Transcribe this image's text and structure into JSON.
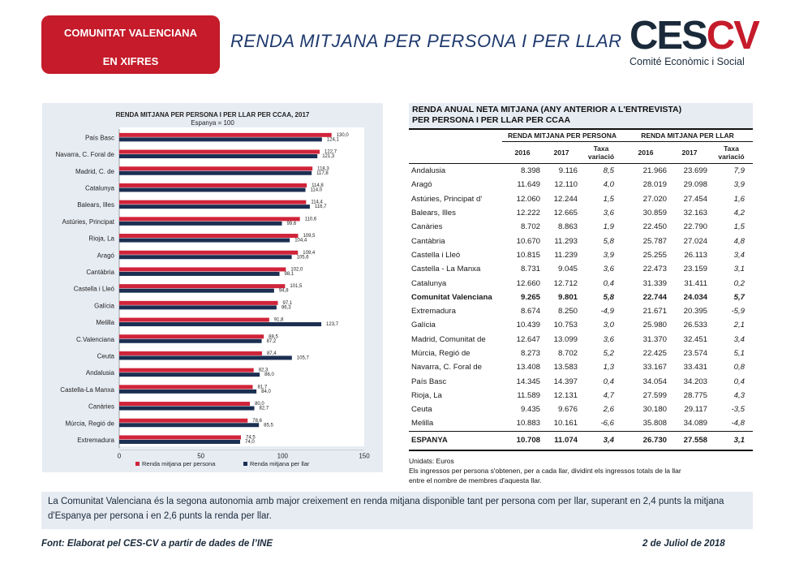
{
  "header": {
    "badge_line1": "COMUNITAT VALENCIANA",
    "badge_line2": "EN XIFRES",
    "title": "RENDA MITJANA PER PERSONA I PER LLAR",
    "logo_ces": "CES",
    "logo_cv": "CV",
    "logo_sub": "Comité Econòmic i Social"
  },
  "chart_data": {
    "type": "bar",
    "orientation": "horizontal",
    "title": "RENDA MITJANA PER PERSONA I PER LLAR PER CCAA, 2017",
    "subtitle": "Espanya = 100",
    "categories": [
      "País Basc",
      "Navarra, C. Foral de",
      "Madrid, C. de",
      "Catalunya",
      "Balears, Illes",
      "Astúries, Principat",
      "Rioja, La",
      "Aragó",
      "Cantàbria",
      "Castella i Lleó",
      "Galícia",
      "Melilla",
      "C.Valenciana",
      "Ceuta",
      "Andalusia",
      "Castella-La Manxa",
      "Canàries",
      "Múrcia, Regió de",
      "Extremadura"
    ],
    "series": [
      {
        "name": "Renda mitjana per persona",
        "color": "#d0243a",
        "values": [
          130.0,
          122.7,
          118.3,
          114.8,
          114.4,
          110.6,
          109.5,
          109.4,
          102.0,
          101.5,
          97.1,
          91.8,
          88.5,
          87.4,
          82.3,
          81.7,
          80.0,
          78.6,
          74.5
        ]
      },
      {
        "name": "Renda mitjana per llar",
        "color": "#1b2f52",
        "values": [
          124.1,
          121.3,
          117.8,
          114.0,
          116.7,
          99.6,
          104.4,
          105.6,
          98.1,
          94.8,
          96.3,
          123.7,
          87.2,
          105.7,
          86.0,
          84.0,
          82.7,
          85.5,
          74.0
        ]
      }
    ],
    "value_labels": [
      [
        "130,0",
        "124,1"
      ],
      [
        "122,7",
        "121,3"
      ],
      [
        "118,3",
        "117,8"
      ],
      [
        "114,8",
        "114,0"
      ],
      [
        "114,4",
        "116,7"
      ],
      [
        "110,6",
        "99,6"
      ],
      [
        "109,5",
        "104,4"
      ],
      [
        "109,4",
        "105,6"
      ],
      [
        "102,0",
        "98,1"
      ],
      [
        "101,5",
        "94,8"
      ],
      [
        "97,1",
        "96,3"
      ],
      [
        "91,8",
        "123,7"
      ],
      [
        "88,5",
        "87,2"
      ],
      [
        "87,4",
        "105,7"
      ],
      [
        "82,3",
        "86,0"
      ],
      [
        "81,7",
        "84,0"
      ],
      [
        "80,0",
        "82,7"
      ],
      [
        "78,6",
        "85,5"
      ],
      [
        "74,5",
        "74,0"
      ]
    ],
    "xlim": [
      0,
      150
    ],
    "xticks": [
      "0",
      "50",
      "100",
      "150"
    ],
    "legend_position": "bottom"
  },
  "table": {
    "title_line1": "RENDA ANUAL NETA MITJANA (ANY ANTERIOR A L'ENTREVISTA)",
    "title_line2": "PER PERSONA I PER LLAR PER CCAA",
    "group_person": "RENDA MITJANA PER PERSONA",
    "group_household": "RENDA MITJANA PER LLAR",
    "col_2016": "2016",
    "col_2017": "2017",
    "col_rate_1": "Taxa",
    "col_rate_2": "variació",
    "rows": [
      {
        "name": "Andalusia",
        "p16": "8.398",
        "p17": "9.116",
        "pr": "8,5",
        "h16": "21.966",
        "h17": "23.699",
        "hr": "7,9"
      },
      {
        "name": "Aragó",
        "p16": "11.649",
        "p17": "12.110",
        "pr": "4,0",
        "h16": "28.019",
        "h17": "29.098",
        "hr": "3,9"
      },
      {
        "name": "Astúries, Principat d'",
        "p16": "12.060",
        "p17": "12.244",
        "pr": "1,5",
        "h16": "27.020",
        "h17": "27.454",
        "hr": "1,6"
      },
      {
        "name": "Balears, Illes",
        "p16": "12.222",
        "p17": "12.665",
        "pr": "3,6",
        "h16": "30.859",
        "h17": "32.163",
        "hr": "4,2"
      },
      {
        "name": "Canàries",
        "p16": "8.702",
        "p17": "8.863",
        "pr": "1,9",
        "h16": "22.450",
        "h17": "22.790",
        "hr": "1,5"
      },
      {
        "name": "Cantàbria",
        "p16": "10.670",
        "p17": "11.293",
        "pr": "5,8",
        "h16": "25.787",
        "h17": "27.024",
        "hr": "4,8"
      },
      {
        "name": "Castella i Lleó",
        "p16": "10.815",
        "p17": "11.239",
        "pr": "3,9",
        "h16": "25.255",
        "h17": "26.113",
        "hr": "3,4"
      },
      {
        "name": "Castella - La Manxa",
        "p16": "8.731",
        "p17": "9.045",
        "pr": "3,6",
        "h16": "22.473",
        "h17": "23.159",
        "hr": "3,1"
      },
      {
        "name": "Catalunya",
        "p16": "12.660",
        "p17": "12.712",
        "pr": "0,4",
        "h16": "31.339",
        "h17": "31.411",
        "hr": "0,2"
      },
      {
        "name": "Comunitat Valenciana",
        "p16": "9.265",
        "p17": "9.801",
        "pr": "5,8",
        "h16": "22.744",
        "h17": "24.034",
        "hr": "5,7",
        "bold": true
      },
      {
        "name": "Extremadura",
        "p16": "8.674",
        "p17": "8.250",
        "pr": "-4,9",
        "h16": "21.671",
        "h17": "20.395",
        "hr": "-5,9"
      },
      {
        "name": "Galícia",
        "p16": "10.439",
        "p17": "10.753",
        "pr": "3,0",
        "h16": "25.980",
        "h17": "26.533",
        "hr": "2,1"
      },
      {
        "name": "Madrid, Comunitat de",
        "p16": "12.647",
        "p17": "13.099",
        "pr": "3,6",
        "h16": "31.370",
        "h17": "32.451",
        "hr": "3,4"
      },
      {
        "name": "Múrcia, Regió de",
        "p16": "8.273",
        "p17": "8.702",
        "pr": "5,2",
        "h16": "22.425",
        "h17": "23.574",
        "hr": "5,1"
      },
      {
        "name": "Navarra, C. Foral de",
        "p16": "13.408",
        "p17": "13.583",
        "pr": "1,3",
        "h16": "33.167",
        "h17": "33.431",
        "hr": "0,8"
      },
      {
        "name": "País Basc",
        "p16": "14.345",
        "p17": "14.397",
        "pr": "0,4",
        "h16": "34.054",
        "h17": "34.203",
        "hr": "0,4"
      },
      {
        "name": "Rioja, La",
        "p16": "11.589",
        "p17": "12.131",
        "pr": "4,7",
        "h16": "27.599",
        "h17": "28.775",
        "hr": "4,3"
      },
      {
        "name": "Ceuta",
        "p16": "9.435",
        "p17": "9.676",
        "pr": "2,6",
        "h16": "30.180",
        "h17": "29.117",
        "hr": "-3,5"
      },
      {
        "name": "Melilla",
        "p16": "10.883",
        "p17": "10.161",
        "pr": "-6,6",
        "h16": "35.808",
        "h17": "34.089",
        "hr": "-4,8"
      }
    ],
    "total": {
      "name": "ESPANYA",
      "p16": "10.708",
      "p17": "11.074",
      "pr": "3,4",
      "h16": "26.730",
      "h17": "27.558",
      "hr": "3,1"
    },
    "units": "Unidats: Euros",
    "note_line1": "Els ingressos per persona s'obtenen, per a cada llar, dividint els ingressos totals de la llar",
    "note_line2": "entre el nombre de membres d'aquesta llar."
  },
  "summary": "La Comunitat Valenciana és la segona autonomia amb major creixement en renda mitjana disponible tant per persona com per llar, superant en 2,4 punts la mitjana d'Espanya per persona i en 2,6 punts la renda per llar.",
  "footer": {
    "source": "Font: Elaborat pel CES-CV a partir de dades de l’INE",
    "date": "2 de Juliol de 2018"
  }
}
